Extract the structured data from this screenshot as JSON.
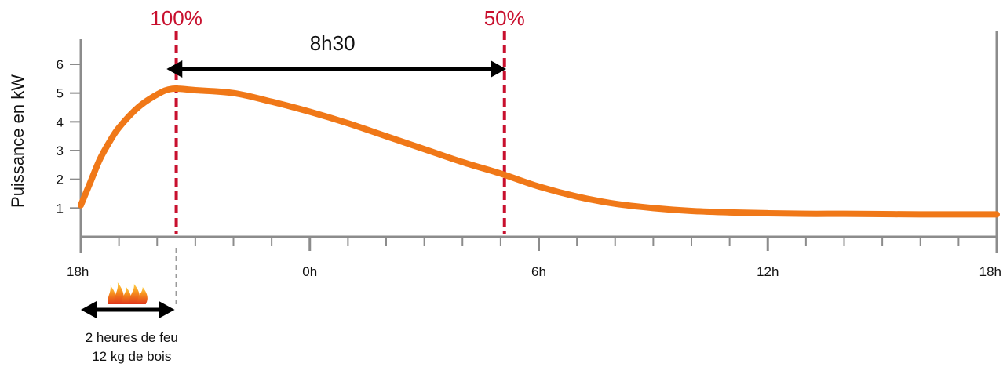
{
  "chart_data": {
    "type": "line",
    "ylabel": "Puissance en kW",
    "xlabel": "",
    "title": "",
    "ylim": [
      0,
      6.6
    ],
    "yticks": [
      1,
      2,
      3,
      4,
      5,
      6
    ],
    "xlim": [
      0,
      24
    ],
    "x_tick_labels": [
      {
        "x": 0,
        "label": "18h"
      },
      {
        "x": 6,
        "label": "0h"
      },
      {
        "x": 12,
        "label": "6h"
      },
      {
        "x": 18,
        "label": "12h"
      },
      {
        "x": 24,
        "label": "18h"
      }
    ],
    "series": [
      {
        "color": "#f07818",
        "x": [
          0,
          0.25,
          0.5,
          0.75,
          1,
          1.5,
          2,
          2.4,
          3,
          4,
          5,
          6,
          7,
          8,
          9,
          10,
          11,
          12,
          13,
          14,
          15,
          16,
          17,
          18,
          19,
          20,
          21,
          22,
          23,
          24
        ],
        "y": [
          1.1,
          1.9,
          2.7,
          3.3,
          3.8,
          4.5,
          4.95,
          5.15,
          5.1,
          5.0,
          4.7,
          4.35,
          3.95,
          3.5,
          3.05,
          2.6,
          2.2,
          1.75,
          1.4,
          1.15,
          1.0,
          0.9,
          0.85,
          0.82,
          0.8,
          0.8,
          0.79,
          0.78,
          0.78,
          0.78
        ]
      }
    ],
    "markers": [
      {
        "x": 2.5,
        "label": "100%"
      },
      {
        "x": 11.1,
        "label": "50%"
      }
    ],
    "span": {
      "from": 2.7,
      "to": 10.9,
      "label": "8h30"
    },
    "fire": {
      "from": 0,
      "to": 2.5,
      "line1": "2 heures de feu",
      "line2": "12 kg de bois"
    }
  }
}
